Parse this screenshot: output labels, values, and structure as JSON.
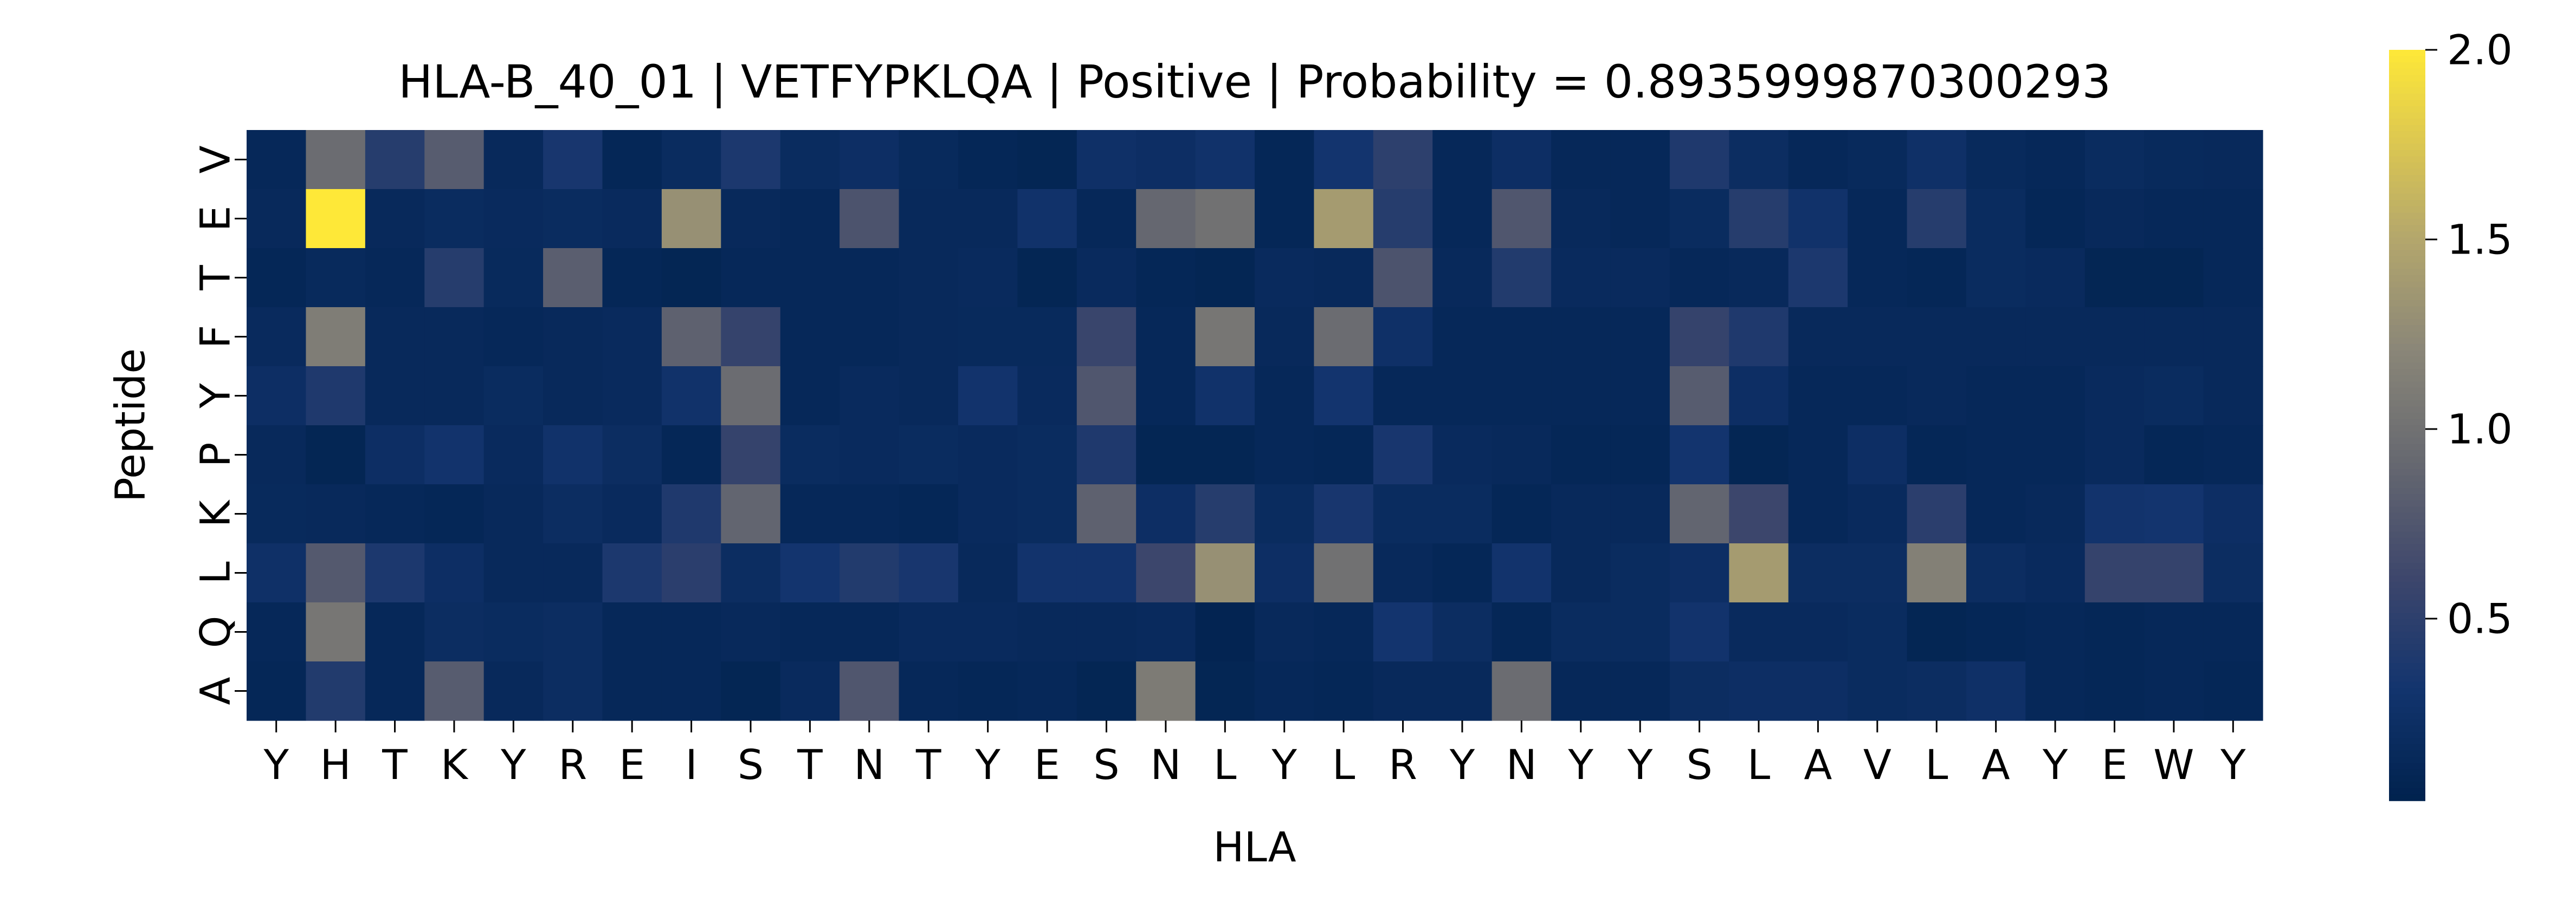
{
  "chart_data": {
    "type": "heatmap",
    "title": "HLA-B_40_01 | VETFYPKLQA | Positive | Probability = 0.8935999870300293",
    "xlabel": "HLA",
    "ylabel": "Peptide",
    "x_categories": [
      "Y",
      "H",
      "T",
      "K",
      "Y",
      "R",
      "E",
      "I",
      "S",
      "T",
      "N",
      "T",
      "Y",
      "E",
      "S",
      "N",
      "L",
      "Y",
      "L",
      "R",
      "Y",
      "N",
      "Y",
      "Y",
      "S",
      "L",
      "A",
      "V",
      "L",
      "A",
      "Y",
      "E",
      "W",
      "Y"
    ],
    "y_categories": [
      "V",
      "E",
      "T",
      "F",
      "Y",
      "P",
      "K",
      "L",
      "Q",
      "A"
    ],
    "values": [
      [
        0.12,
        0.95,
        0.45,
        0.8,
        0.14,
        0.35,
        0.1,
        0.18,
        0.38,
        0.18,
        0.22,
        0.15,
        0.1,
        0.08,
        0.25,
        0.22,
        0.28,
        0.1,
        0.32,
        0.5,
        0.12,
        0.22,
        0.12,
        0.12,
        0.4,
        0.2,
        0.12,
        0.15,
        0.25,
        0.15,
        0.12,
        0.18,
        0.15,
        0.14
      ],
      [
        0.14,
        2.0,
        0.14,
        0.18,
        0.16,
        0.18,
        0.16,
        1.3,
        0.14,
        0.12,
        0.72,
        0.14,
        0.14,
        0.28,
        0.12,
        0.9,
        1.0,
        0.1,
        1.4,
        0.45,
        0.12,
        0.75,
        0.14,
        0.12,
        0.18,
        0.45,
        0.28,
        0.12,
        0.45,
        0.18,
        0.1,
        0.14,
        0.12,
        0.12
      ],
      [
        0.1,
        0.15,
        0.12,
        0.45,
        0.15,
        0.82,
        0.1,
        0.08,
        0.12,
        0.12,
        0.12,
        0.14,
        0.16,
        0.08,
        0.16,
        0.1,
        0.08,
        0.16,
        0.14,
        0.72,
        0.14,
        0.42,
        0.16,
        0.16,
        0.12,
        0.14,
        0.38,
        0.12,
        0.1,
        0.18,
        0.16,
        0.08,
        0.08,
        0.12
      ],
      [
        0.16,
        1.12,
        0.14,
        0.14,
        0.12,
        0.14,
        0.16,
        0.85,
        0.55,
        0.12,
        0.12,
        0.14,
        0.15,
        0.15,
        0.58,
        0.12,
        1.05,
        0.14,
        0.95,
        0.25,
        0.12,
        0.12,
        0.12,
        0.12,
        0.55,
        0.4,
        0.14,
        0.14,
        0.14,
        0.14,
        0.14,
        0.14,
        0.14,
        0.14
      ],
      [
        0.22,
        0.4,
        0.14,
        0.14,
        0.18,
        0.14,
        0.16,
        0.28,
        0.95,
        0.12,
        0.16,
        0.14,
        0.3,
        0.16,
        0.75,
        0.12,
        0.28,
        0.12,
        0.32,
        0.12,
        0.12,
        0.12,
        0.12,
        0.12,
        0.8,
        0.22,
        0.12,
        0.12,
        0.14,
        0.12,
        0.12,
        0.16,
        0.18,
        0.14
      ],
      [
        0.14,
        0.08,
        0.22,
        0.3,
        0.16,
        0.28,
        0.2,
        0.1,
        0.55,
        0.18,
        0.16,
        0.18,
        0.16,
        0.18,
        0.4,
        0.08,
        0.08,
        0.12,
        0.1,
        0.35,
        0.16,
        0.14,
        0.1,
        0.1,
        0.32,
        0.08,
        0.12,
        0.22,
        0.1,
        0.12,
        0.12,
        0.16,
        0.1,
        0.12
      ],
      [
        0.15,
        0.14,
        0.12,
        0.1,
        0.14,
        0.2,
        0.16,
        0.4,
        0.88,
        0.12,
        0.12,
        0.1,
        0.16,
        0.18,
        0.85,
        0.22,
        0.45,
        0.18,
        0.35,
        0.18,
        0.18,
        0.1,
        0.14,
        0.14,
        0.88,
        0.6,
        0.12,
        0.16,
        0.48,
        0.12,
        0.14,
        0.3,
        0.32,
        0.22
      ],
      [
        0.25,
        0.78,
        0.38,
        0.22,
        0.14,
        0.14,
        0.38,
        0.48,
        0.2,
        0.32,
        0.42,
        0.35,
        0.14,
        0.3,
        0.3,
        0.6,
        1.3,
        0.22,
        1.0,
        0.14,
        0.1,
        0.3,
        0.14,
        0.18,
        0.22,
        1.4,
        0.2,
        0.2,
        1.15,
        0.2,
        0.16,
        0.55,
        0.55,
        0.2
      ],
      [
        0.12,
        1.05,
        0.12,
        0.2,
        0.18,
        0.2,
        0.12,
        0.12,
        0.14,
        0.12,
        0.12,
        0.16,
        0.16,
        0.14,
        0.14,
        0.16,
        0.06,
        0.14,
        0.12,
        0.32,
        0.2,
        0.1,
        0.18,
        0.18,
        0.3,
        0.16,
        0.16,
        0.18,
        0.08,
        0.1,
        0.12,
        0.1,
        0.12,
        0.12
      ],
      [
        0.1,
        0.42,
        0.12,
        0.8,
        0.14,
        0.2,
        0.12,
        0.12,
        0.08,
        0.16,
        0.75,
        0.12,
        0.1,
        0.12,
        0.08,
        1.1,
        0.08,
        0.12,
        0.1,
        0.14,
        0.14,
        0.95,
        0.12,
        0.12,
        0.2,
        0.22,
        0.22,
        0.18,
        0.2,
        0.25,
        0.12,
        0.1,
        0.12,
        0.1
      ]
    ],
    "colorbar": {
      "colormap": "cividis",
      "vmin": 0.02,
      "vmax": 2.0,
      "ticks": [
        0.5,
        1.0,
        1.5,
        2.0
      ],
      "tick_labels": [
        "0.5",
        "1.0",
        "1.5",
        "2.0"
      ]
    },
    "grid": false
  }
}
